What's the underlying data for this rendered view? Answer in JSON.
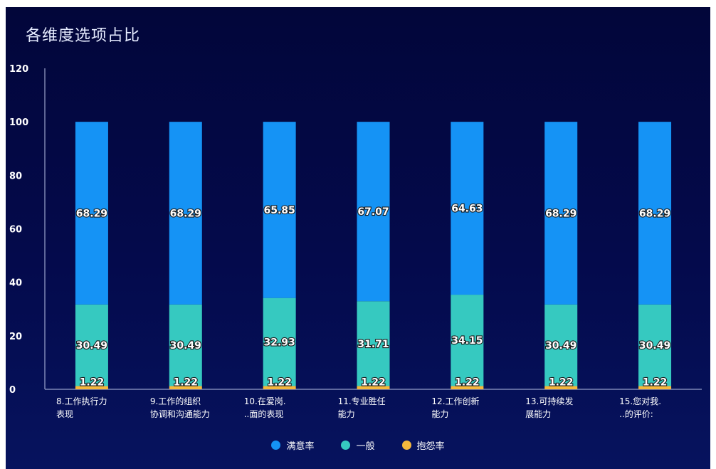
{
  "chart_data": {
    "type": "bar",
    "stacked": true,
    "title": "各维度选项占比",
    "categories": [
      [
        "8.工作执行力",
        "表现"
      ],
      [
        "9.工作的组织",
        "协调和沟通能力"
      ],
      [
        "10.在爱岗.",
        "..面的表现"
      ],
      [
        "11.专业胜任",
        "能力"
      ],
      [
        "12.工作创新",
        "能力"
      ],
      [
        "13.可持续发",
        "展能力"
      ],
      [
        "15.您对我.",
        "..的评价:"
      ]
    ],
    "series": [
      {
        "name": "抱怨率",
        "color": "#f5b83d",
        "values": [
          1.22,
          1.22,
          1.22,
          1.22,
          1.22,
          1.22,
          1.22
        ]
      },
      {
        "name": "一般",
        "color": "#36c9c0",
        "values": [
          30.49,
          30.49,
          32.93,
          31.71,
          34.15,
          30.49,
          30.49
        ]
      },
      {
        "name": "满意率",
        "color": "#1593f5",
        "values": [
          68.29,
          68.29,
          65.85,
          67.07,
          64.63,
          68.29,
          68.29
        ]
      }
    ],
    "yticks": [
      0,
      20,
      40,
      60,
      80,
      100,
      120
    ],
    "ylim": [
      0,
      120
    ],
    "legend_position": "bottom-center",
    "legend_order": [
      "满意率",
      "一般",
      "抱怨率"
    ],
    "grid": false
  }
}
